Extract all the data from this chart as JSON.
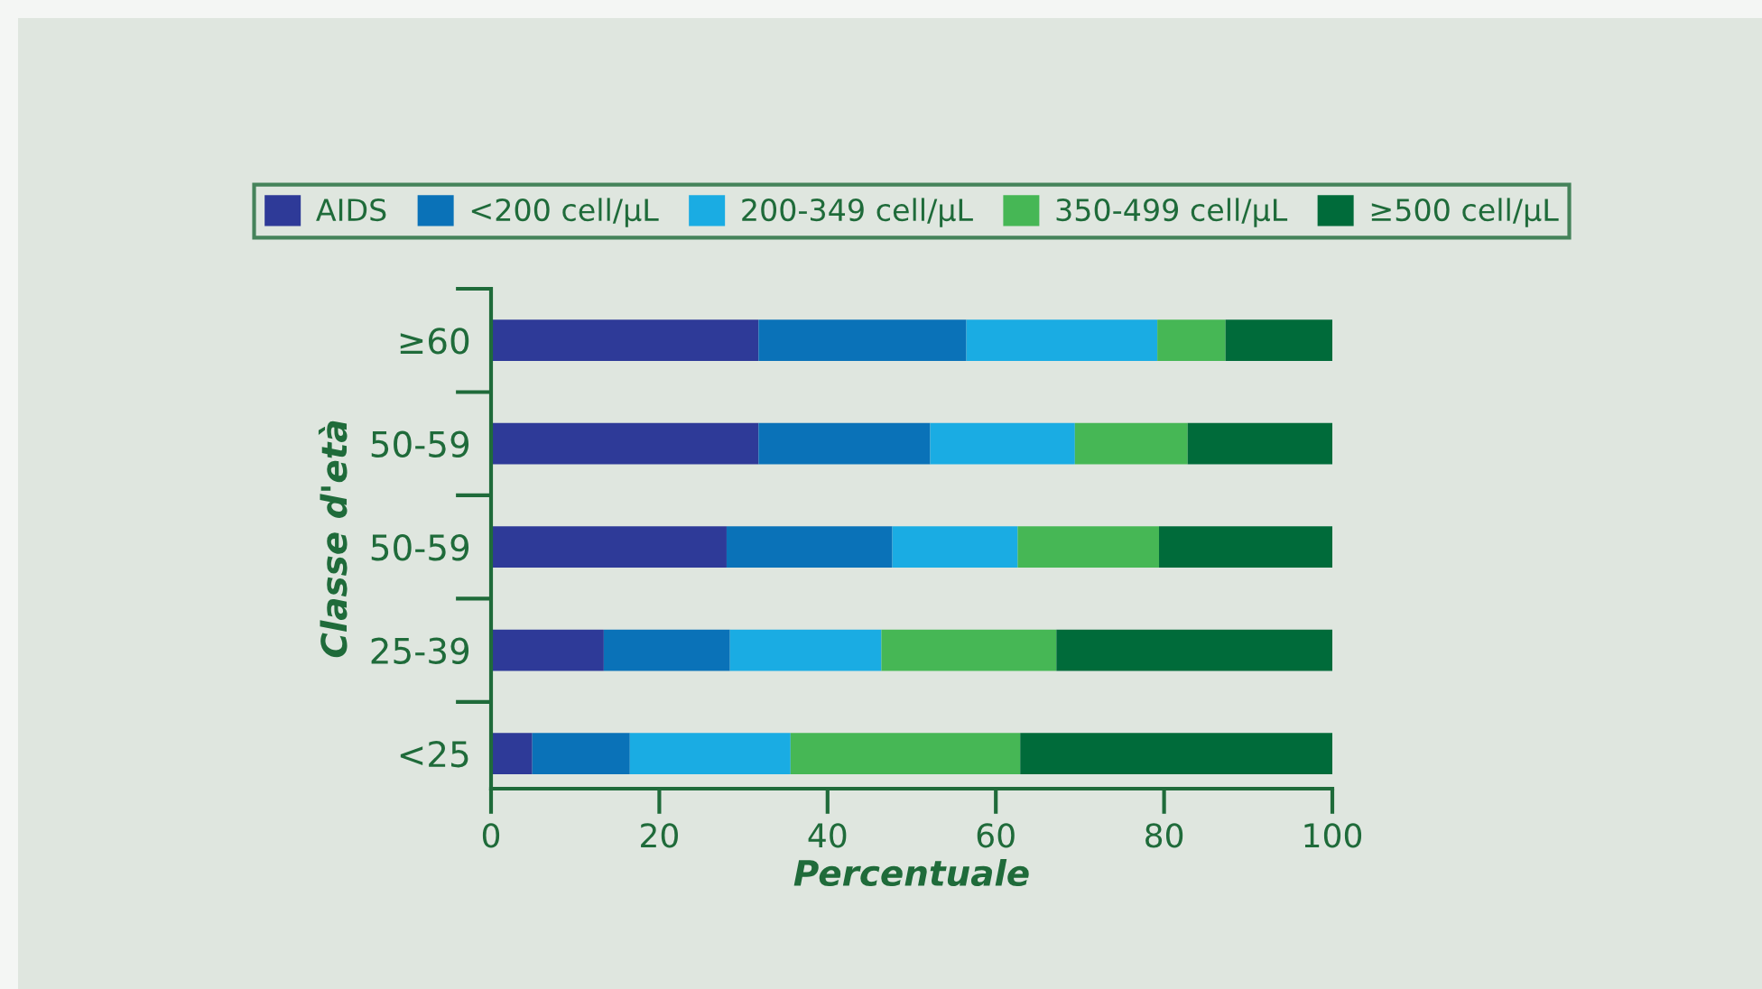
{
  "chart_data": {
    "type": "bar",
    "orientation": "horizontal",
    "stacked": true,
    "xlabel": "Percentuale",
    "ylabel": "Classe d'età",
    "categories": [
      "≥60",
      "50-59",
      "50-59",
      "25-39",
      "<25"
    ],
    "series": [
      {
        "name": "AIDS",
        "color": "#2e3a98",
        "values": [
          31.8,
          31.8,
          28.0,
          13.4,
          4.9
        ]
      },
      {
        "name": "<200 cell/µL",
        "color": "#0a72b8",
        "values": [
          24.7,
          20.4,
          19.7,
          15.0,
          11.6
        ]
      },
      {
        "name": "200-349 cell/µL",
        "color": "#1aace3",
        "values": [
          22.7,
          17.2,
          14.9,
          18.0,
          19.1
        ]
      },
      {
        "name": "350-499 cell/µL",
        "color": "#46b755",
        "values": [
          8.1,
          13.4,
          16.8,
          20.8,
          27.3
        ]
      },
      {
        "name": "≥500 cell/µL",
        "color": "#006b3a",
        "values": [
          12.7,
          17.2,
          20.6,
          32.8,
          37.1
        ]
      }
    ],
    "xlim": [
      0,
      100
    ],
    "xticks": [
      0,
      20,
      40,
      60,
      80,
      100
    ],
    "grid": false,
    "legend": "top"
  }
}
